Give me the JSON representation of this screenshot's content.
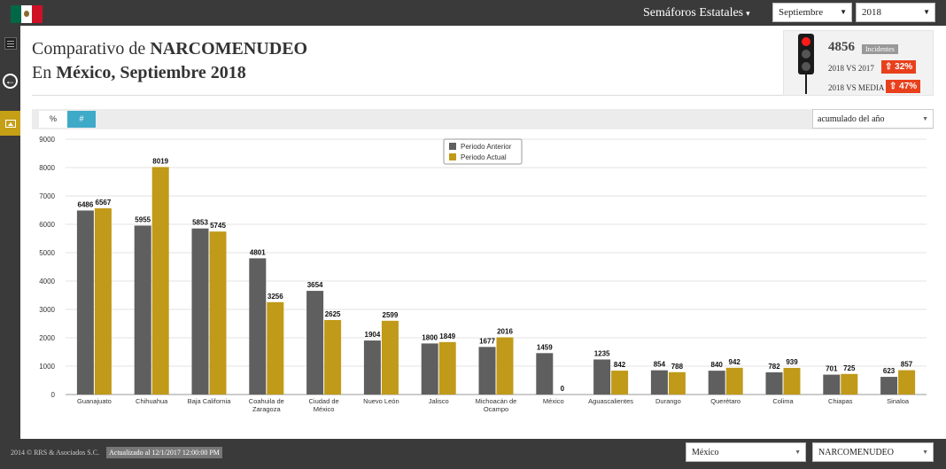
{
  "header": {
    "nav_title": "Semáforos Estatales",
    "month": "Septiembre",
    "year": "2018"
  },
  "title": {
    "line1_prefix": "Comparativo de",
    "line1_bold": "NARCOMENUDEO",
    "line2_prefix": "En",
    "line2_bold": "México, Septiembre 2018"
  },
  "kpi": {
    "count": "4856",
    "badge": "Incidentes",
    "row1_label": "2018 VS 2017",
    "row1_value": "32%",
    "row2_label": "2018 VS MEDIA",
    "row2_value": "47%",
    "status_color": "#ff1a1a",
    "badge_color": "#e8401c"
  },
  "toolbar": {
    "pct_label": "%",
    "num_label": "#",
    "accumulated": "acumulado del año"
  },
  "footer": {
    "copyright": "2014 © RRS & Asociados S.C.",
    "updated": "Actualizado al 12/1/2017 12:00:00 PM",
    "state": "México",
    "crime": "NARCOMENUDEO"
  },
  "chart_data": {
    "type": "bar",
    "categories": [
      [
        "Guanajuato"
      ],
      [
        "Chihuahua"
      ],
      [
        "Baja California"
      ],
      [
        "Coahuila de",
        "Zaragoza"
      ],
      [
        "Ciudad de",
        "México"
      ],
      [
        "Nuevo León"
      ],
      [
        "Jalisco"
      ],
      [
        "Michoacán de",
        "Ocampo"
      ],
      [
        "México"
      ],
      [
        "Aguascalientes"
      ],
      [
        "Durango"
      ],
      [
        "Querétaro"
      ],
      [
        "Colima"
      ],
      [
        "Chiapas"
      ],
      [
        "Sinaloa"
      ]
    ],
    "series": [
      {
        "name": "Periodo Anterior",
        "color": "#5f5f5f",
        "values": [
          6486,
          5955,
          5853,
          4801,
          3654,
          1904,
          1800,
          1677,
          1459,
          1235,
          854,
          840,
          782,
          701,
          623
        ]
      },
      {
        "name": "Periodo Actual",
        "color": "#c09a18",
        "values": [
          6567,
          8019,
          5745,
          3256,
          2625,
          2599,
          1849,
          2016,
          0,
          842,
          788,
          942,
          939,
          725,
          857
        ]
      }
    ],
    "ylim": [
      0,
      9000
    ],
    "yticks": [
      0,
      1000,
      2000,
      3000,
      4000,
      5000,
      6000,
      7000,
      8000,
      9000
    ],
    "grid": true,
    "legend": "top-center"
  }
}
